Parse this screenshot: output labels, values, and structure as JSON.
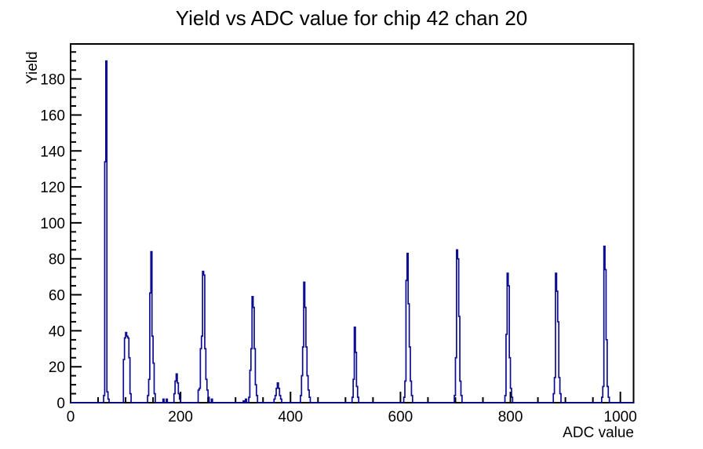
{
  "title": "Yield vs ADC value for chip 42 chan 20",
  "axes": {
    "x": {
      "title": "ADC value"
    },
    "y": {
      "title": "Yield"
    }
  },
  "chart_data": {
    "type": "histogram",
    "title": "Yield vs ADC value for chip 42 chan 20",
    "xlabel": "ADC value",
    "ylabel": "Yield",
    "xlim": [
      0,
      1024
    ],
    "ylim": [
      0,
      199.5
    ],
    "x_major_ticks": [
      0,
      200,
      400,
      600,
      800,
      1000
    ],
    "x_minor_step": 50,
    "y_major_ticks": [
      0,
      20,
      40,
      60,
      80,
      100,
      120,
      140,
      160,
      180
    ],
    "y_minor_step": 5,
    "grid": false,
    "legend": false,
    "bin_width_adc": 2,
    "line_color": "#0c0c90",
    "axis_color": "#000000",
    "background_color": "#ffffff",
    "peak_summary": [
      {
        "adc": 64,
        "yield": 190
      },
      {
        "adc": 100,
        "yield": 39
      },
      {
        "adc": 146,
        "yield": 84
      },
      {
        "adc": 192,
        "yield": 16
      },
      {
        "adc": 240,
        "yield": 73
      },
      {
        "adc": 330,
        "yield": 59
      },
      {
        "adc": 376,
        "yield": 11
      },
      {
        "adc": 424,
        "yield": 67
      },
      {
        "adc": 516,
        "yield": 42
      },
      {
        "adc": 612,
        "yield": 83
      },
      {
        "adc": 702,
        "yield": 85
      },
      {
        "adc": 794,
        "yield": 72
      },
      {
        "adc": 882,
        "yield": 72
      },
      {
        "adc": 970,
        "yield": 87
      }
    ],
    "bins": [
      [
        60,
        4
      ],
      [
        62,
        134
      ],
      [
        64,
        190
      ],
      [
        66,
        6
      ],
      [
        68,
        2
      ],
      [
        96,
        24
      ],
      [
        98,
        36
      ],
      [
        100,
        39
      ],
      [
        102,
        37
      ],
      [
        104,
        36
      ],
      [
        106,
        25
      ],
      [
        108,
        5
      ],
      [
        140,
        4
      ],
      [
        142,
        13
      ],
      [
        144,
        61
      ],
      [
        146,
        84
      ],
      [
        148,
        37
      ],
      [
        150,
        22
      ],
      [
        152,
        5
      ],
      [
        168,
        2
      ],
      [
        174,
        2
      ],
      [
        188,
        5
      ],
      [
        190,
        12
      ],
      [
        192,
        16
      ],
      [
        194,
        11
      ],
      [
        196,
        5
      ],
      [
        198,
        2
      ],
      [
        232,
        7
      ],
      [
        234,
        8
      ],
      [
        236,
        30
      ],
      [
        238,
        37
      ],
      [
        240,
        73
      ],
      [
        242,
        71
      ],
      [
        244,
        30
      ],
      [
        246,
        13
      ],
      [
        248,
        7
      ],
      [
        250,
        3
      ],
      [
        256,
        2
      ],
      [
        314,
        1
      ],
      [
        318,
        2
      ],
      [
        324,
        3
      ],
      [
        326,
        18
      ],
      [
        328,
        30
      ],
      [
        330,
        59
      ],
      [
        332,
        53
      ],
      [
        334,
        30
      ],
      [
        336,
        10
      ],
      [
        338,
        4
      ],
      [
        370,
        2
      ],
      [
        372,
        4
      ],
      [
        374,
        8
      ],
      [
        376,
        11
      ],
      [
        378,
        8
      ],
      [
        380,
        4
      ],
      [
        382,
        2
      ],
      [
        418,
        4
      ],
      [
        420,
        15
      ],
      [
        422,
        31
      ],
      [
        424,
        67
      ],
      [
        426,
        53
      ],
      [
        428,
        31
      ],
      [
        430,
        15
      ],
      [
        432,
        7
      ],
      [
        434,
        3
      ],
      [
        512,
        3
      ],
      [
        514,
        13
      ],
      [
        516,
        42
      ],
      [
        518,
        28
      ],
      [
        520,
        9
      ],
      [
        522,
        3
      ],
      [
        606,
        3
      ],
      [
        608,
        12
      ],
      [
        610,
        68
      ],
      [
        612,
        83
      ],
      [
        614,
        55
      ],
      [
        616,
        31
      ],
      [
        618,
        12
      ],
      [
        620,
        4
      ],
      [
        698,
        4
      ],
      [
        700,
        25
      ],
      [
        702,
        85
      ],
      [
        704,
        80
      ],
      [
        706,
        48
      ],
      [
        708,
        12
      ],
      [
        710,
        4
      ],
      [
        790,
        4
      ],
      [
        792,
        38
      ],
      [
        794,
        72
      ],
      [
        796,
        65
      ],
      [
        798,
        25
      ],
      [
        800,
        8
      ],
      [
        802,
        3
      ],
      [
        878,
        5
      ],
      [
        880,
        14
      ],
      [
        882,
        72
      ],
      [
        884,
        62
      ],
      [
        886,
        45
      ],
      [
        888,
        14
      ],
      [
        890,
        5
      ],
      [
        966,
        3
      ],
      [
        968,
        9
      ],
      [
        970,
        87
      ],
      [
        972,
        74
      ],
      [
        974,
        35
      ],
      [
        976,
        9
      ],
      [
        978,
        3
      ]
    ]
  }
}
